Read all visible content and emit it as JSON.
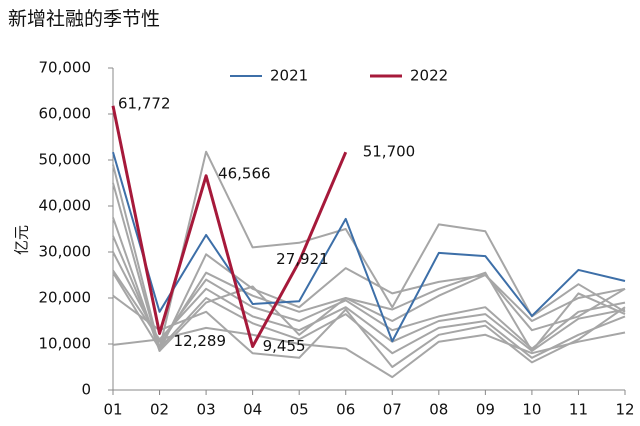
{
  "chart_data": {
    "type": "line",
    "title": "新增社融的季节性",
    "y_label": "亿元",
    "categories": [
      "01",
      "02",
      "03",
      "04",
      "05",
      "06",
      "07",
      "08",
      "09",
      "10",
      "11",
      "12"
    ],
    "ylim": [
      0,
      70000
    ],
    "yticks": [
      0,
      {
        "value": 10000,
        "label": "10,000"
      },
      {
        "value": 20000,
        "label": "20,000"
      },
      {
        "value": 30000,
        "label": "30,000"
      },
      {
        "value": 40000,
        "label": "40,000"
      },
      {
        "value": 50000,
        "label": "50,000"
      },
      {
        "value": 60000,
        "label": "60,000"
      },
      {
        "value": 70000,
        "label": "70,000"
      }
    ],
    "background_series": [
      {
        "color": "#a6a6a6",
        "values": [
          49000,
          9000,
          51800,
          31000,
          32000,
          35000,
          18000,
          36000,
          34500,
          16000,
          23000,
          17000
        ]
      },
      {
        "color": "#a6a6a6",
        "values": [
          37500,
          8500,
          29500,
          22000,
          18000,
          26500,
          21000,
          23500,
          25000,
          15000,
          20000,
          22000
        ]
      },
      {
        "color": "#a6a6a6",
        "values": [
          33500,
          9500,
          25500,
          20500,
          17000,
          20000,
          17500,
          22000,
          25500,
          8500,
          21000,
          16500
        ]
      },
      {
        "color": "#a6a6a6",
        "values": [
          30000,
          10500,
          24000,
          18000,
          15000,
          19500,
          13000,
          16000,
          18000,
          9000,
          17000,
          19000
        ]
      },
      {
        "color": "#a6a6a6",
        "values": [
          26000,
          11000,
          22000,
          16000,
          13000,
          18000,
          10500,
          15000,
          16500,
          8500,
          15500,
          17500
        ]
      },
      {
        "color": "#a6a6a6",
        "values": [
          25500,
          9000,
          20000,
          14500,
          11000,
          16500,
          8000,
          13500,
          15000,
          7000,
          12000,
          16000
        ]
      },
      {
        "color": "#a6a6a6",
        "values": [
          20500,
          13000,
          17000,
          8000,
          7000,
          17500,
          5000,
          12000,
          14000,
          6000,
          11000,
          18000
        ]
      },
      {
        "color": "#a6a6a6",
        "values": [
          9800,
          11000,
          13500,
          12000,
          10000,
          9000,
          2800,
          10500,
          12000,
          8000,
          10500,
          12500
        ]
      },
      {
        "color": "#a6a6a6",
        "values": [
          45000,
          8500,
          19000,
          22500,
          12000,
          20000,
          15000,
          20500,
          25000,
          13000,
          16000,
          22000
        ]
      }
    ],
    "series": [
      {
        "name": "2021",
        "color": "#3d6fa8",
        "values": [
          51700,
          17000,
          33700,
          18700,
          19300,
          37200,
          10600,
          29800,
          29100,
          16100,
          26100,
          23700
        ]
      },
      {
        "name": "2022",
        "color": "#a6193a",
        "values": [
          61772,
          12289,
          46566,
          9455,
          27921,
          51700,
          null,
          null,
          null,
          null,
          null,
          null
        ],
        "value_labels": [
          "61,772",
          "12,289",
          "46,566",
          "9,455",
          "27,921",
          "51,700",
          null,
          null,
          null,
          null,
          null,
          null
        ]
      }
    ]
  }
}
